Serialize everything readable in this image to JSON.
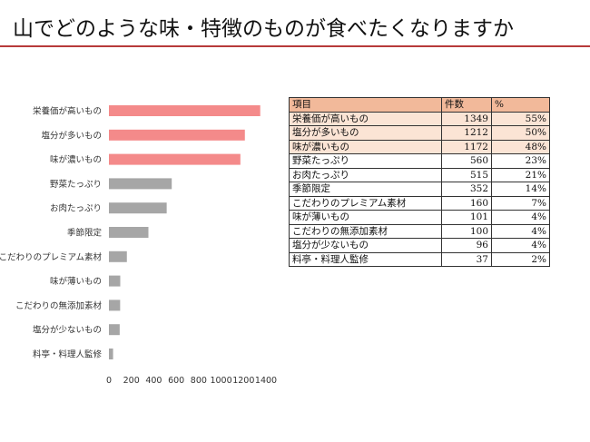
{
  "header": {
    "title": "山でどのような味・特徴のものが食べたくなりますか"
  },
  "colors": {
    "highlight_bar": "#f48a8a",
    "normal_bar": "#a6a6a6",
    "title_rule": "#b73a3a",
    "table_header": "#f2b99a",
    "table_highlight": "#fbe4d5"
  },
  "chart_data": {
    "type": "bar",
    "orientation": "horizontal",
    "categories": [
      "栄養価が高いもの",
      "塩分が多いもの",
      "味が濃いもの",
      "野菜たっぷり",
      "お肉たっぷり",
      "季節限定",
      "こだわりのプレミアム素材",
      "味が薄いもの",
      "こだわりの無添加素材",
      "塩分が少ないもの",
      "料亭・料理人監修"
    ],
    "values": [
      1349,
      1212,
      1172,
      560,
      515,
      352,
      160,
      101,
      100,
      96,
      37
    ],
    "highlighted": [
      true,
      true,
      true,
      false,
      false,
      false,
      false,
      false,
      false,
      false,
      false
    ],
    "xlim": [
      0,
      1400
    ],
    "xticks": [
      0,
      200,
      400,
      600,
      800,
      1000,
      1200,
      1400
    ],
    "xtick_labels": [
      "0",
      "200",
      "400",
      "600",
      "800",
      "1000",
      "1200",
      "1400"
    ],
    "grid": false,
    "title": "",
    "xlabel": "",
    "ylabel": ""
  },
  "table": {
    "headers": [
      "項目",
      "件数",
      "%"
    ],
    "rows": [
      {
        "item": "栄養価が高いもの",
        "count": "1349",
        "pct": "55%",
        "highlight": true
      },
      {
        "item": "塩分が多いもの",
        "count": "1212",
        "pct": "50%",
        "highlight": true
      },
      {
        "item": "味が濃いもの",
        "count": "1172",
        "pct": "48%",
        "highlight": true
      },
      {
        "item": "野菜たっぷり",
        "count": "560",
        "pct": "23%",
        "highlight": false
      },
      {
        "item": "お肉たっぷり",
        "count": "515",
        "pct": "21%",
        "highlight": false
      },
      {
        "item": "季節限定",
        "count": "352",
        "pct": "14%",
        "highlight": false
      },
      {
        "item": "こだわりのプレミアム素材",
        "count": "160",
        "pct": "7%",
        "highlight": false
      },
      {
        "item": "味が薄いもの",
        "count": "101",
        "pct": "4%",
        "highlight": false
      },
      {
        "item": "こだわりの無添加素材",
        "count": "100",
        "pct": "4%",
        "highlight": false
      },
      {
        "item": "塩分が少ないもの",
        "count": "96",
        "pct": "4%",
        "highlight": false
      },
      {
        "item": "料亭・料理人監修",
        "count": "37",
        "pct": "2%",
        "highlight": false
      }
    ]
  }
}
